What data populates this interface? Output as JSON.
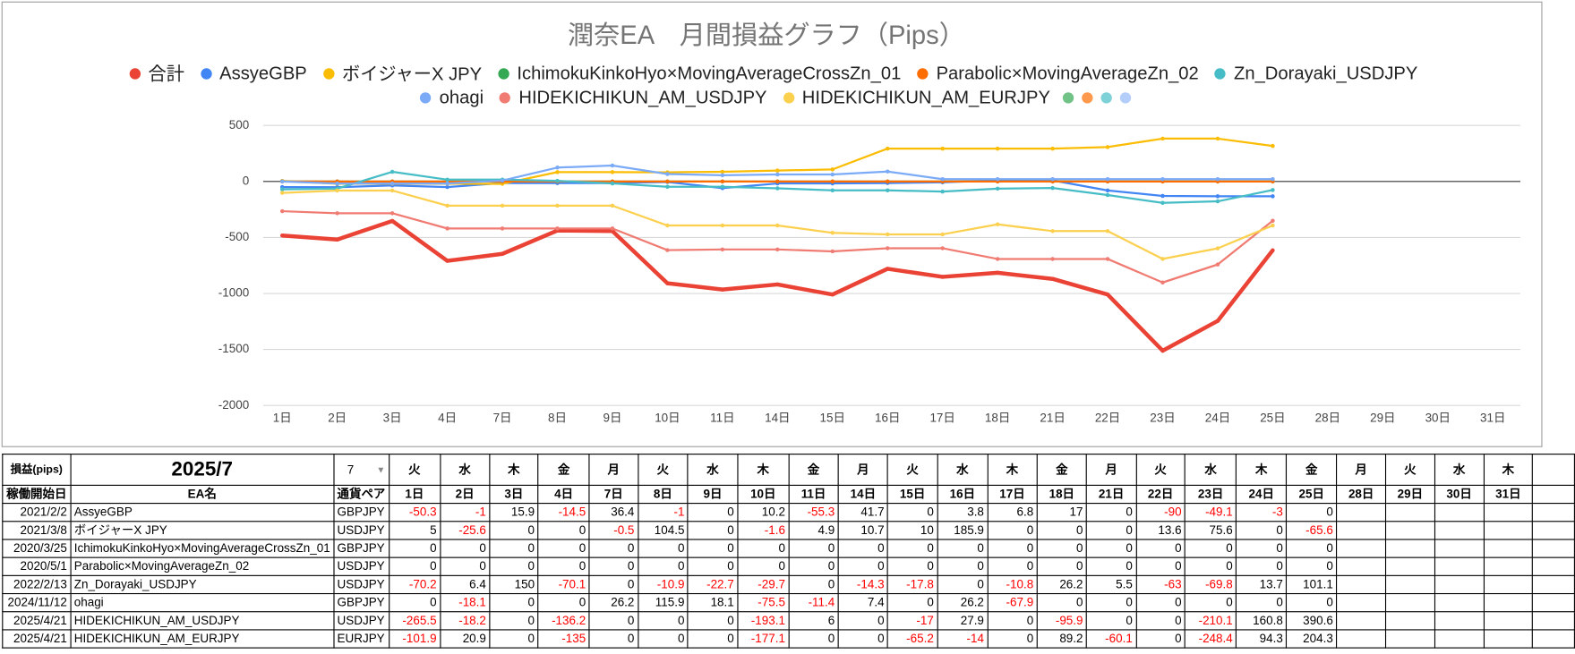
{
  "chart_data": {
    "type": "line",
    "title": "潤奈EA　月間損益グラフ（Pips）",
    "categories": [
      "1日",
      "2日",
      "3日",
      "4日",
      "7日",
      "8日",
      "9日",
      "10日",
      "11日",
      "14日",
      "15日",
      "16日",
      "17日",
      "18日",
      "21日",
      "22日",
      "23日",
      "24日",
      "25日",
      "28日",
      "29日",
      "30日",
      "31日"
    ],
    "ylim": [
      -2000,
      500
    ],
    "yticks": [
      500,
      0,
      -500,
      -1000,
      -1500,
      -2000
    ],
    "grid": true,
    "series": [
      {
        "name": "合計",
        "color": "#ea4335",
        "values": [
          -483,
          -518.6,
          -352.7,
          -708.5,
          -646.4,
          -437.9,
          -442.5,
          -909.3,
          -965.1,
          -919.6,
          -1009.6,
          -779.8,
          -851.7,
          -815.2,
          -869.8,
          -1009.2,
          -1511,
          -1245.2,
          -614.8,
          null,
          null,
          null,
          null
        ]
      },
      {
        "name": "AssyeGBP",
        "color": "#4285f4",
        "values": [
          -50.3,
          -51.3,
          -35.4,
          -49.9,
          -13.5,
          -14.5,
          -14.5,
          -4.3,
          -59.6,
          -17.9,
          -17.9,
          -14.1,
          -7.3,
          9.7,
          9.7,
          -80.3,
          -129.4,
          -132.4,
          -132.4,
          null,
          null,
          null,
          null
        ]
      },
      {
        "name": "ボイジャーX JPY",
        "color": "#fbbc04",
        "values": [
          5,
          -20.6,
          -20.6,
          -20.6,
          -21.1,
          83.4,
          83.4,
          81.8,
          86.7,
          97.4,
          107.4,
          293.3,
          293.3,
          293.3,
          293.3,
          306.9,
          382.5,
          382.5,
          316.9,
          null,
          null,
          null,
          null
        ]
      },
      {
        "name": "IchimokuKinkoHyo×MovingAverageCrossZn_01",
        "color": "#34a853",
        "values": [
          0,
          0,
          0,
          0,
          0,
          0,
          0,
          0,
          0,
          0,
          0,
          0,
          0,
          0,
          0,
          0,
          0,
          0,
          0,
          null,
          null,
          null,
          null
        ]
      },
      {
        "name": "Parabolic×MovingAverageZn_02",
        "color": "#ff6d01",
        "values": [
          0,
          0,
          0,
          0,
          0,
          0,
          0,
          0,
          0,
          0,
          0,
          0,
          0,
          0,
          0,
          0,
          0,
          0,
          0,
          null,
          null,
          null,
          null
        ]
      },
      {
        "name": "Zn_Dorayaki_USDJPY",
        "color": "#46bdc6",
        "values": [
          -70.2,
          -63.8,
          86.2,
          16.1,
          16.1,
          5.2,
          -17.5,
          -47.2,
          -47.2,
          -61.5,
          -79.3,
          -79.3,
          -90.1,
          -63.9,
          -58.4,
          -121.4,
          -191.2,
          -177.5,
          -76.4,
          null,
          null,
          null,
          null
        ]
      },
      {
        "name": "ohagi",
        "color": "#7baaf7",
        "values": [
          0,
          -18.1,
          -18.1,
          -18.1,
          8.1,
          124,
          142.1,
          66.6,
          55.2,
          62.6,
          62.6,
          88.8,
          20.9,
          20.9,
          20.9,
          20.9,
          20.9,
          20.9,
          20.9,
          null,
          null,
          null,
          null
        ]
      },
      {
        "name": "HIDEKICHIKUN_AM_USDJPY",
        "color": "#f07b72",
        "values": [
          -265.5,
          -283.7,
          -283.7,
          -419.9,
          -419.9,
          -419.9,
          -419.9,
          -613,
          -607,
          -607,
          -624,
          -596.1,
          -596.1,
          -692,
          -692,
          -692,
          -902.1,
          -741.3,
          -350.7,
          null,
          null,
          null,
          null
        ]
      },
      {
        "name": "HIDEKICHIKUN_AM_EURJPY",
        "color": "#fcd04f",
        "values": [
          -101.9,
          -81,
          -81,
          -216,
          -216,
          -216,
          -216,
          -393.1,
          -393.1,
          -393.1,
          -458.3,
          -472.3,
          -472.3,
          -383.1,
          -443.2,
          -443.2,
          -691.6,
          -597.3,
          -393,
          null,
          null,
          null,
          null
        ]
      }
    ]
  },
  "table": {
    "label": "損益(pips)",
    "month": "2025/7",
    "selector": "7",
    "weekdays": [
      "火",
      "水",
      "木",
      "金",
      "月",
      "火",
      "水",
      "木",
      "金",
      "月",
      "火",
      "水",
      "木",
      "金",
      "月",
      "火",
      "水",
      "木",
      "金",
      "月",
      "火",
      "水",
      "木"
    ],
    "columns": [
      "稼働開始日",
      "EA名",
      "通貨ペア"
    ],
    "rows": [
      {
        "start": "2021/2/2",
        "pair": "GBPJPY",
        "values": [
          -50.3,
          -1,
          15.9,
          -14.5,
          36.4,
          -1,
          0,
          10.2,
          -55.3,
          41.7,
          0,
          3.8,
          6.8,
          17,
          0,
          -90,
          -49.1,
          -3,
          0
        ]
      },
      {
        "start": "2021/3/8",
        "pair": "USDJPY",
        "values": [
          5,
          -25.6,
          0,
          0,
          -0.5,
          104.5,
          0,
          -1.6,
          4.9,
          10.7,
          10,
          185.9,
          0,
          0,
          0,
          13.6,
          75.6,
          0,
          -65.6
        ]
      },
      {
        "start": "2020/3/25",
        "pair": "GBPJPY",
        "values": [
          0,
          0,
          0,
          0,
          0,
          0,
          0,
          0,
          0,
          0,
          0,
          0,
          0,
          0,
          0,
          0,
          0,
          0,
          0
        ]
      },
      {
        "start": "2020/5/1",
        "pair": "USDJPY",
        "values": [
          0,
          0,
          0,
          0,
          0,
          0,
          0,
          0,
          0,
          0,
          0,
          0,
          0,
          0,
          0,
          0,
          0,
          0,
          0
        ]
      },
      {
        "start": "2022/2/13",
        "pair": "USDJPY",
        "values": [
          -70.2,
          6.4,
          150,
          -70.1,
          0,
          -10.9,
          -22.7,
          -29.7,
          0,
          -14.3,
          -17.8,
          0,
          -10.8,
          26.2,
          5.5,
          -63,
          -69.8,
          13.7,
          101.1
        ]
      },
      {
        "start": "2024/11/12",
        "pair": "GBPJPY",
        "values": [
          0,
          -18.1,
          0,
          0,
          26.2,
          115.9,
          18.1,
          -75.5,
          -11.4,
          7.4,
          0,
          26.2,
          -67.9,
          0,
          0,
          0,
          0,
          0,
          0
        ]
      },
      {
        "start": "2025/4/21",
        "pair": "USDJPY",
        "values": [
          -265.5,
          -18.2,
          0,
          -136.2,
          0,
          0,
          0,
          -193.1,
          6,
          0,
          -17,
          27.9,
          0,
          -95.9,
          0,
          0,
          -210.1,
          160.8,
          390.6
        ]
      },
      {
        "start": "2025/4/21",
        "pair": "EURJPY",
        "values": [
          -101.9,
          20.9,
          0,
          -135,
          0,
          0,
          0,
          -177.1,
          0,
          0,
          -65.2,
          -14,
          0,
          89.2,
          -60.1,
          0,
          -248.4,
          94.3,
          204.3
        ]
      }
    ]
  }
}
